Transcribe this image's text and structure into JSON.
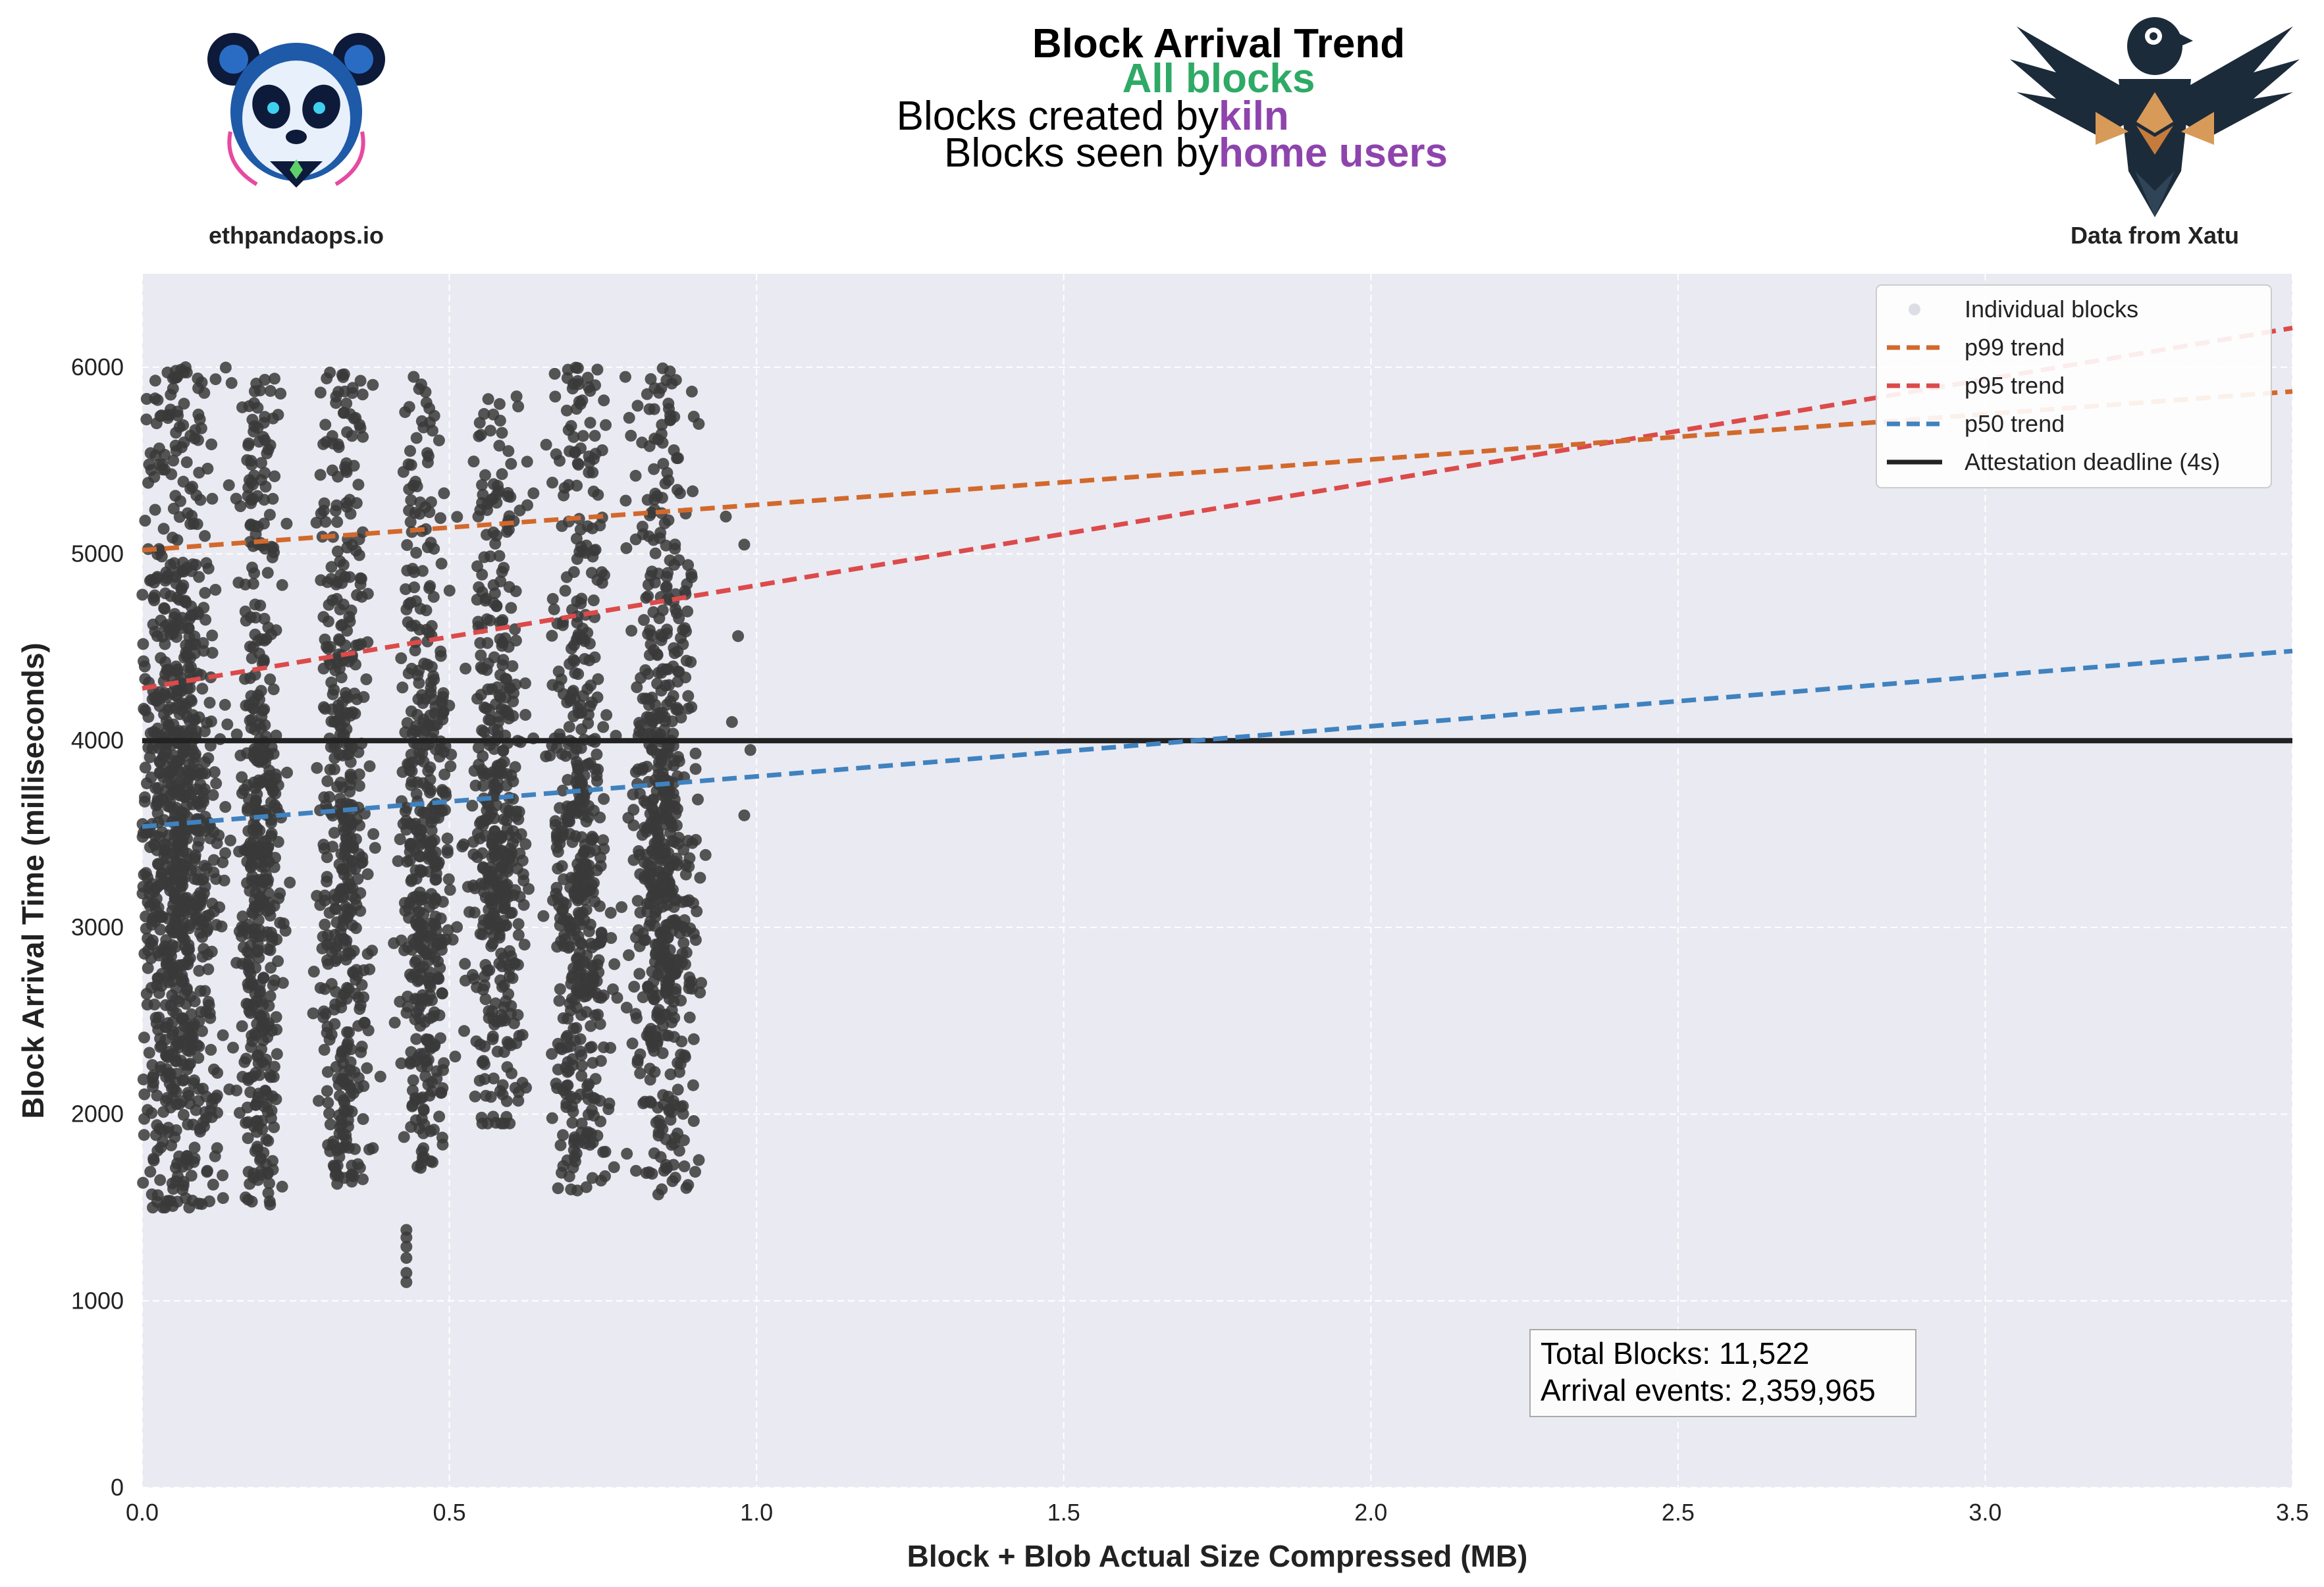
{
  "header": {
    "title": "Block Arrival Trend",
    "subtitle": "All blocks",
    "line1_prefix": "Blocks created by ",
    "line1_highlight": "kiln",
    "line2_prefix": "Blocks seen by ",
    "line2_highlight": "home users",
    "left_brand": "ethpandaops.io",
    "right_brand": "Data from Xatu"
  },
  "colors": {
    "subtitle": "#2eaa66",
    "highlight": "#8e44ad",
    "plot_bg": "#eaeaf2",
    "points": "#3a3a3a",
    "p99": "#d2692c",
    "p95": "#dc4a4a",
    "p50": "#3f82bf",
    "deadline": "#222222"
  },
  "stats": {
    "total_blocks": "Total Blocks: 11,522",
    "arrival_events": "Arrival events: 2,359,965"
  },
  "legend": {
    "items": [
      {
        "label": "Individual blocks",
        "kind": "point"
      },
      {
        "label": "p99 trend",
        "kind": "dash",
        "color": "#d2692c"
      },
      {
        "label": "p95 trend",
        "kind": "dash",
        "color": "#dc4a4a"
      },
      {
        "label": "p50 trend",
        "kind": "dash",
        "color": "#3f82bf"
      },
      {
        "label": "Attestation deadline (4s)",
        "kind": "solid",
        "color": "#222222"
      }
    ]
  },
  "chart_data": {
    "type": "scatter",
    "xlabel": "Block + Blob Actual Size Compressed (MB)",
    "ylabel": "Block Arrival Time (milliseconds)",
    "xlim": [
      0.0,
      3.5
    ],
    "ylim": [
      0,
      6500
    ],
    "xticks": [
      "0.0",
      "0.5",
      "1.0",
      "1.5",
      "2.0",
      "2.5",
      "3.0",
      "3.5"
    ],
    "yticks": [
      "0",
      "1000",
      "2000",
      "3000",
      "4000",
      "5000",
      "6000"
    ],
    "grid": true,
    "legend_position": "top-right",
    "scatter_clusters": [
      {
        "x_center": 0.06,
        "x_spread": 0.06,
        "y_min": 1500,
        "y_max": 6000,
        "count": 900
      },
      {
        "x_center": 0.19,
        "x_spread": 0.03,
        "y_min": 1500,
        "y_max": 5950,
        "count": 450
      },
      {
        "x_center": 0.33,
        "x_spread": 0.035,
        "y_min": 1580,
        "y_max": 5980,
        "count": 450
      },
      {
        "x_center": 0.46,
        "x_spread": 0.035,
        "y_min": 1700,
        "y_max": 5950,
        "count": 430
      },
      {
        "x_center": 0.58,
        "x_spread": 0.04,
        "y_min": 1950,
        "y_max": 5850,
        "count": 430
      },
      {
        "x_center": 0.71,
        "x_spread": 0.04,
        "y_min": 1550,
        "y_max": 6000,
        "count": 500
      },
      {
        "x_center": 0.85,
        "x_spread": 0.045,
        "y_min": 1570,
        "y_max": 6000,
        "count": 600
      }
    ],
    "outliers": [
      {
        "x": 0.43,
        "y": 1100
      },
      {
        "x": 0.43,
        "y": 1150
      },
      {
        "x": 0.43,
        "y": 1230
      },
      {
        "x": 0.43,
        "y": 1290
      },
      {
        "x": 0.43,
        "y": 1340
      },
      {
        "x": 0.43,
        "y": 1380
      },
      {
        "x": 0.95,
        "y": 5200
      },
      {
        "x": 0.98,
        "y": 5050
      },
      {
        "x": 0.97,
        "y": 4560
      },
      {
        "x": 0.96,
        "y": 4100
      },
      {
        "x": 0.99,
        "y": 3950
      },
      {
        "x": 0.98,
        "y": 3600
      }
    ],
    "series": [
      {
        "name": "p99 trend",
        "x": [
          0.0,
          3.5
        ],
        "y": [
          5020,
          5870
        ]
      },
      {
        "name": "p95 trend",
        "x": [
          0.0,
          3.5
        ],
        "y": [
          4280,
          6210
        ]
      },
      {
        "name": "p50 trend",
        "x": [
          0.0,
          3.5
        ],
        "y": [
          3540,
          4480
        ]
      },
      {
        "name": "Attestation deadline (4s)",
        "x": [
          0.0,
          3.5
        ],
        "y": [
          4000,
          4000
        ]
      }
    ]
  }
}
